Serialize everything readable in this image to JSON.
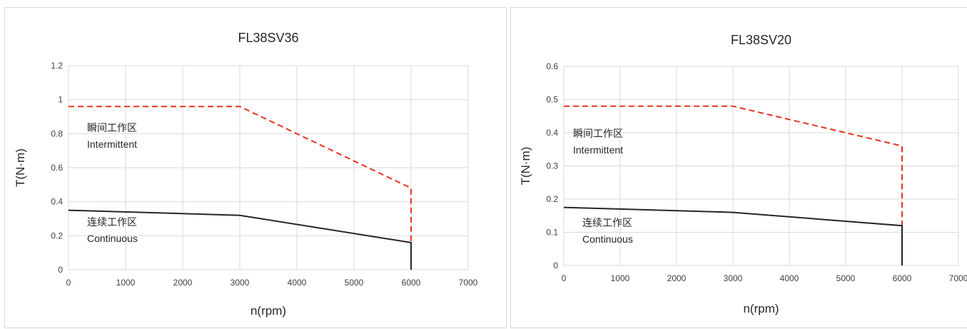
{
  "chart_data": [
    {
      "type": "line",
      "title": "FL38SV36",
      "xlabel": "n(rpm)",
      "ylabel": "T(N·m)",
      "xlim": [
        0,
        7000
      ],
      "ylim": [
        0,
        1.2
      ],
      "xticks": [
        "0",
        "1000",
        "2000",
        "3000",
        "4000",
        "5000",
        "6000",
        "7000"
      ],
      "yticks": [
        "0",
        "0.2",
        "0.4",
        "0.6",
        "0.8",
        "1",
        "1.2"
      ],
      "grid": true,
      "series": [
        {
          "name": "Intermittent",
          "style": "dashed",
          "color": "#e8321e",
          "points": [
            [
              0,
              0.96
            ],
            [
              3000,
              0.96
            ],
            [
              6000,
              0.48
            ],
            [
              6000,
              0
            ]
          ]
        },
        {
          "name": "Continuous",
          "style": "solid",
          "color": "#262626",
          "points": [
            [
              0,
              0.35
            ],
            [
              3000,
              0.32
            ],
            [
              6000,
              0.16
            ],
            [
              6000,
              0
            ]
          ]
        }
      ],
      "annotations": [
        {
          "zh": "瞬间工作区",
          "en": "Intermittent"
        },
        {
          "zh": "连续工作区",
          "en": "Continuous"
        }
      ]
    },
    {
      "type": "line",
      "title": "FL38SV20",
      "xlabel": "n(rpm)",
      "ylabel": "T(N·m)",
      "xlim": [
        0,
        7000
      ],
      "ylim": [
        0,
        0.6
      ],
      "xticks": [
        "0",
        "1000",
        "2000",
        "3000",
        "4000",
        "5000",
        "6000",
        "7000"
      ],
      "yticks": [
        "0",
        "0.1",
        "0.2",
        "0.3",
        "0.4",
        "0.5",
        "0.6"
      ],
      "grid": true,
      "series": [
        {
          "name": "Intermittent",
          "style": "dashed",
          "color": "#e8321e",
          "points": [
            [
              0,
              0.48
            ],
            [
              3000,
              0.48
            ],
            [
              6000,
              0.36
            ],
            [
              6000,
              0
            ]
          ]
        },
        {
          "name": "Continuous",
          "style": "solid",
          "color": "#262626",
          "points": [
            [
              0,
              0.175
            ],
            [
              3000,
              0.16
            ],
            [
              6000,
              0.12
            ],
            [
              6000,
              0
            ]
          ]
        }
      ],
      "annotations": [
        {
          "zh": "瞬间工作区",
          "en": "Intermittent"
        },
        {
          "zh": "连续工作区",
          "en": "Continuous"
        }
      ]
    }
  ]
}
